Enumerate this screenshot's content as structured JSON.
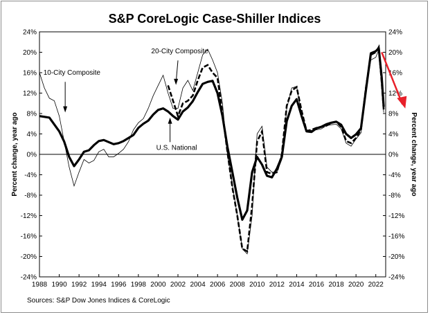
{
  "chart_data": {
    "type": "line",
    "title": "S&P CoreLogic Case-Shiller Indices",
    "ylabel_left": "Percent change, year ago",
    "ylabel_right": "Percent change, year ago",
    "xlabel": "",
    "xlim": [
      1988,
      2023
    ],
    "ylim": [
      -24,
      24
    ],
    "x_ticks": [
      1988,
      1990,
      1992,
      1994,
      1996,
      1998,
      2000,
      2002,
      2004,
      2006,
      2008,
      2010,
      2012,
      2014,
      2016,
      2018,
      2020,
      2022
    ],
    "y_ticks": [
      -24,
      -20,
      -16,
      -12,
      -8,
      -4,
      0,
      4,
      8,
      12,
      16,
      20,
      24
    ],
    "y_tick_labels": [
      "-24%",
      "-20%",
      "-16%",
      "-12%",
      "-8%",
      "-4%",
      "0%",
      "4%",
      "8%",
      "12%",
      "16%",
      "20%",
      "24%"
    ],
    "source": "Sources:  S&P Dow Jones Indices & CoreLogic",
    "annotations": [
      {
        "text": "10-City Composite",
        "x": 1990.6,
        "y": 8.0
      },
      {
        "text": "20-City Composite",
        "x": 2001.8,
        "y": 13.5
      },
      {
        "text": "U.S. National",
        "x": 2001.2,
        "y": 6.5
      },
      {
        "text": "",
        "x": 2022.7,
        "y": 9.3
      }
    ],
    "series": [
      {
        "name": "U.S. National",
        "style": "thick",
        "x": [
          1988,
          1989,
          1990,
          1990.5,
          1991,
          1991.5,
          1992,
          1992.5,
          1993,
          1993.5,
          1994,
          1994.5,
          1995,
          1995.5,
          1996,
          1996.5,
          1997,
          1997.5,
          1998,
          1998.5,
          1999,
          1999.5,
          2000,
          2000.5,
          2001,
          2001.5,
          2002,
          2002.5,
          2003,
          2003.5,
          2004,
          2004.5,
          2005,
          2005.5,
          2006,
          2006.5,
          2007,
          2007.5,
          2008,
          2008.5,
          2009,
          2009.5,
          2010,
          2010.5,
          2011,
          2011.5,
          2012,
          2012.5,
          2013,
          2013.5,
          2014,
          2014.5,
          2015,
          2015.5,
          2016,
          2016.5,
          2017,
          2017.5,
          2018,
          2018.5,
          2019,
          2019.5,
          2020,
          2020.5,
          2021,
          2021.5,
          2022,
          2022.3,
          2022.6,
          2022.8
        ],
        "values": [
          7.5,
          7.2,
          4.5,
          2.5,
          -0.5,
          -2.3,
          -1.0,
          0.5,
          0.8,
          1.8,
          2.6,
          2.8,
          2.4,
          2.0,
          2.2,
          2.6,
          3.2,
          3.8,
          5.2,
          6.0,
          6.6,
          7.8,
          8.7,
          9.0,
          8.4,
          7.5,
          6.8,
          8.4,
          9.2,
          10.4,
          12.2,
          13.8,
          14.2,
          14.4,
          12.0,
          7.5,
          1.5,
          -3.5,
          -8.5,
          -12.8,
          -11.0,
          -3.5,
          -0.5,
          -2.0,
          -4.2,
          -4.5,
          -2.8,
          -0.5,
          6.5,
          9.5,
          10.8,
          7.5,
          4.5,
          4.4,
          5.1,
          5.4,
          5.9,
          6.2,
          6.4,
          5.8,
          4.0,
          3.2,
          3.9,
          5.1,
          12.5,
          19.8,
          20.2,
          20.8,
          15.0,
          9.3
        ]
      },
      {
        "name": "20-City Composite",
        "style": "dashed",
        "x": [
          2001,
          2001.5,
          2002,
          2002.5,
          2003,
          2003.5,
          2004,
          2004.5,
          2005,
          2005.5,
          2006,
          2006.5,
          2007,
          2007.5,
          2008,
          2008.5,
          2009,
          2009.5,
          2010,
          2010.5,
          2011,
          2011.5,
          2012,
          2012.5,
          2013,
          2013.5,
          2014,
          2014.5,
          2015,
          2015.5,
          2016,
          2016.5,
          2017,
          2017.5,
          2018,
          2018.5,
          2019,
          2019.5,
          2020,
          2020.5,
          2021,
          2021.5,
          2022,
          2022.3,
          2022.6,
          2022.8
        ],
        "values": [
          13.5,
          10.5,
          7.5,
          10.0,
          10.5,
          11.5,
          14.5,
          17.0,
          17.5,
          16.0,
          15.0,
          8.0,
          0.5,
          -6.5,
          -12.0,
          -18.5,
          -19.0,
          -10.0,
          2.5,
          4.5,
          -3.5,
          -3.8,
          -3.5,
          0.0,
          9.5,
          12.5,
          13.2,
          8.5,
          4.6,
          4.8,
          5.2,
          5.4,
          5.6,
          6.2,
          6.4,
          5.4,
          2.6,
          2.2,
          3.2,
          4.8,
          13.0,
          19.5,
          20.0,
          21.0,
          14.0,
          8.8
        ]
      },
      {
        "name": "10-City Composite",
        "style": "thin",
        "x": [
          1988,
          1988.5,
          1989,
          1989.5,
          1990,
          1990.5,
          1991,
          1991.5,
          1992,
          1992.5,
          1993,
          1993.5,
          1994,
          1994.5,
          1995,
          1995.5,
          1996,
          1996.5,
          1997,
          1997.5,
          1998,
          1998.5,
          1999,
          1999.5,
          2000,
          2000.5,
          2001,
          2001.5,
          2002,
          2002.5,
          2003,
          2003.5,
          2004,
          2004.5,
          2005,
          2005.5,
          2006,
          2006.5,
          2007,
          2007.5,
          2008,
          2008.5,
          2009,
          2009.5,
          2010,
          2010.5,
          2011,
          2011.5,
          2012,
          2012.5,
          2013,
          2013.5,
          2014,
          2014.5,
          2015,
          2015.5,
          2016,
          2016.5,
          2017,
          2017.5,
          2018,
          2018.5,
          2019,
          2019.5,
          2020,
          2020.5,
          2021,
          2021.5,
          2022,
          2022.3,
          2022.6,
          2022.8
        ],
        "values": [
          16.0,
          13.0,
          11.0,
          10.5,
          7.5,
          2.5,
          -2.5,
          -6.2,
          -3.5,
          -1.0,
          -1.7,
          -1.2,
          0.5,
          1.0,
          -0.5,
          -0.5,
          0.2,
          1.0,
          2.5,
          4.8,
          6.2,
          7.0,
          9.0,
          11.5,
          13.5,
          15.5,
          12.0,
          9.0,
          9.0,
          13.0,
          14.5,
          12.5,
          16.0,
          19.5,
          20.6,
          18.5,
          16.0,
          10.0,
          0.0,
          -6.0,
          -12.0,
          -18.5,
          -19.5,
          -12.0,
          4.0,
          5.5,
          -2.5,
          -3.5,
          -3.5,
          -1.0,
          9.0,
          13.0,
          13.3,
          8.0,
          4.7,
          4.7,
          4.8,
          5.0,
          5.6,
          5.8,
          5.9,
          5.0,
          2.2,
          1.6,
          3.0,
          4.2,
          12.5,
          18.5,
          19.0,
          20.5,
          13.0,
          8.2
        ]
      }
    ]
  }
}
